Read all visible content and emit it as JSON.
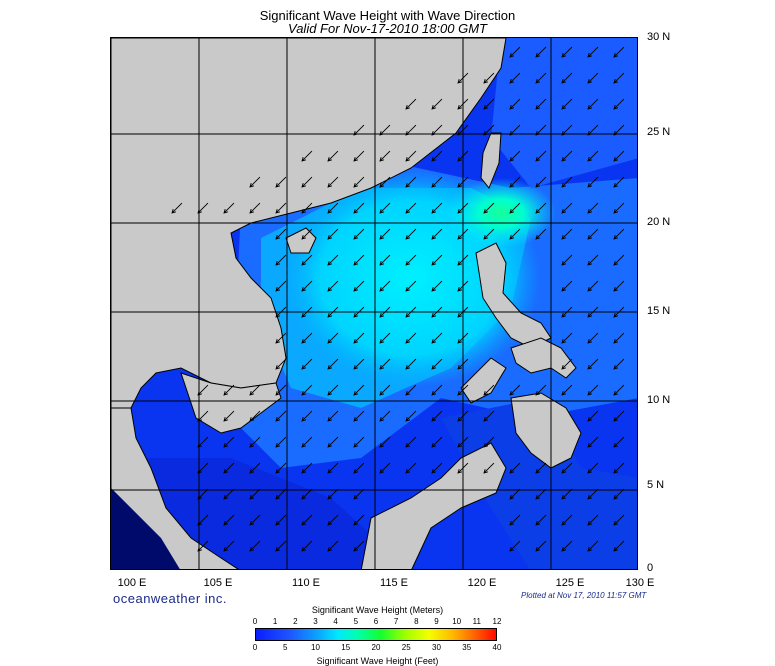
{
  "title": "Significant Wave Height with Wave Direction",
  "subtitle": "Valid For Nov-17-2010 18:00 GMT",
  "lat_labels": [
    "30 N",
    "25 N",
    "20 N",
    "15 N",
    "10 N",
    "5 N",
    "0"
  ],
  "lon_labels": [
    "100 E",
    "105 E",
    "110 E",
    "115 E",
    "120 E",
    "125 E",
    "130 E"
  ],
  "branding": "oceanweather inc.",
  "plotted": "Plotted at Nov 17, 2010 11:57 GMT",
  "colorbar": {
    "title_meters": "Significant Wave Height (Meters)",
    "title_feet": "Significant Wave Height (Feet)",
    "meters_ticks": [
      "0",
      "1",
      "2",
      "3",
      "4",
      "5",
      "6",
      "7",
      "8",
      "9",
      "10",
      "11",
      "12"
    ],
    "feet_ticks": [
      "0",
      "5",
      "10",
      "15",
      "20",
      "25",
      "30",
      "35",
      "40"
    ]
  },
  "map_extent": {
    "lon_min": 100,
    "lon_max": 130,
    "lat_min": 0,
    "lat_max": 30
  },
  "wave_direction": "arrows pointing toward south-west (NE monsoon swell)",
  "colors": {
    "land": "#c9c9c9",
    "deep_blue": "#0a2ce6",
    "mid_blue": "#1f6bff",
    "cyan": "#00e6ff",
    "green_peak": "#16ff98",
    "dark_navy": "#000a6a"
  }
}
